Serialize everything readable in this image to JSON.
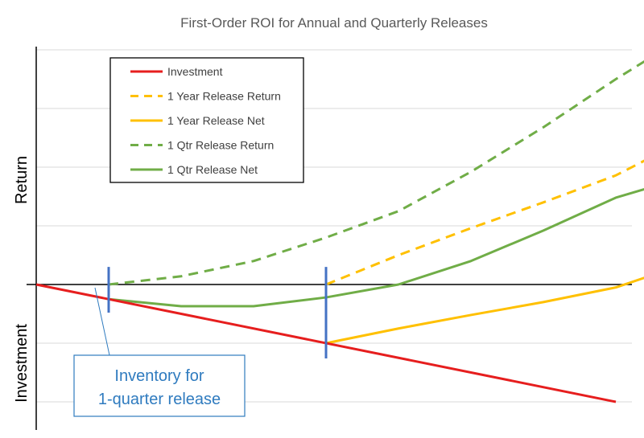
{
  "chart_data": {
    "type": "line",
    "title": "First-Order ROI for Annual and Quarterly Releases",
    "ylabel_positive": "Return",
    "ylabel_negative": "Investment",
    "xlabel": "",
    "ylim": [
      -2.6,
      4
    ],
    "xlim": [
      0,
      4.3
    ],
    "grid": true,
    "legend_position": "top-left",
    "series": [
      {
        "name": "Investment",
        "color": "#e61e1e",
        "dash": false,
        "x": [
          0,
          4
        ],
        "y": [
          0,
          -2
        ]
      },
      {
        "name": "1 Year Release Return",
        "color": "#ffc000",
        "dash": true,
        "x": [
          2,
          2.5,
          3,
          3.5,
          4,
          4.3
        ],
        "y": [
          0,
          0.5,
          0.96,
          1.4,
          1.86,
          2.24
        ]
      },
      {
        "name": "1 Year Release Net",
        "color": "#ffc000",
        "dash": false,
        "x": [
          2,
          2.5,
          3,
          3.5,
          4,
          4.3
        ],
        "y": [
          -1,
          -0.75,
          -0.52,
          -0.3,
          -0.05,
          0.2
        ]
      },
      {
        "name": "1 Qtr Release Return",
        "color": "#70ad47",
        "dash": true,
        "x": [
          0.5,
          1,
          1.5,
          2,
          2.5,
          3,
          3.5,
          4,
          4.3
        ],
        "y": [
          0,
          0.14,
          0.4,
          0.8,
          1.25,
          1.92,
          2.68,
          3.5,
          3.96
        ]
      },
      {
        "name": "1 Qtr Release Net",
        "color": "#70ad47",
        "dash": false,
        "x": [
          0.5,
          1,
          1.5,
          2,
          2.5,
          3,
          3.5,
          4,
          4.3
        ],
        "y": [
          -0.25,
          -0.37,
          -0.37,
          -0.22,
          0,
          0.4,
          0.92,
          1.48,
          1.7
        ]
      }
    ],
    "markers": [
      {
        "x": 0.5,
        "ymin": -0.48,
        "ymax": 0.3,
        "color": "#4472c4"
      },
      {
        "x": 2,
        "ymin": -1.26,
        "ymax": 0.3,
        "color": "#4472c4"
      }
    ],
    "annotation": {
      "line1": "Inventory for",
      "line2": "1-quarter release",
      "color": "#2f7bbf"
    }
  }
}
